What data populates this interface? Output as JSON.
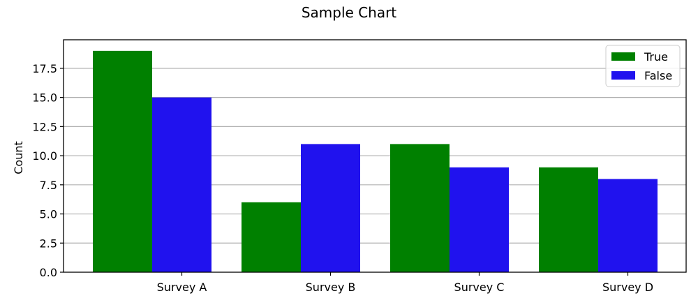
{
  "chart_data": {
    "type": "bar",
    "title": "Sample Chart",
    "xlabel": "",
    "ylabel": "Count",
    "categories": [
      "Survey A",
      "Survey B",
      "Survey C",
      "Survey D"
    ],
    "series": [
      {
        "name": "True",
        "values": [
          19,
          6,
          11,
          9
        ],
        "color": "#008000"
      },
      {
        "name": "False",
        "values": [
          15,
          11,
          9,
          8
        ],
        "color": "#2012ee"
      }
    ],
    "ylim": [
      0,
      20
    ],
    "yticks": [
      "0.0",
      "2.5",
      "5.0",
      "7.5",
      "10.0",
      "12.5",
      "15.0",
      "17.5"
    ],
    "grid": true,
    "legend_position": "top-right"
  }
}
